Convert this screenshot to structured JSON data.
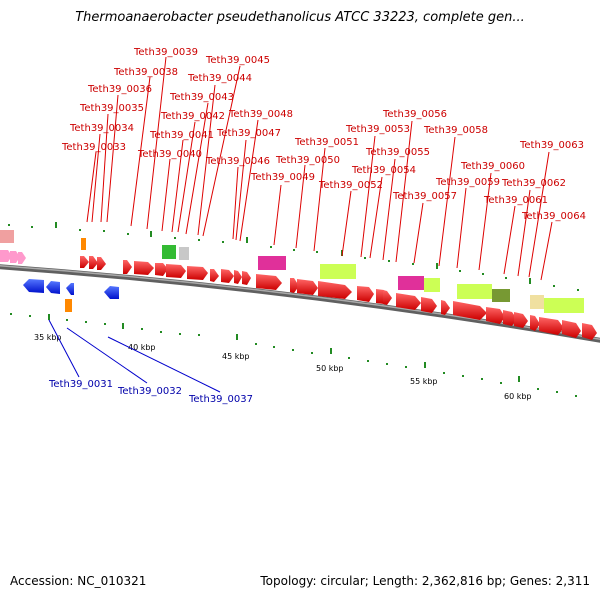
{
  "title": "Thermoanaerobacter pseudethanolicus ATCC 33223, complete gen...",
  "footer": {
    "accession": "Accession: NC_010321",
    "summary": "Topology: circular; Length: 2,362,816 bp; Genes: 2,311"
  },
  "colors": {
    "forward_cds": "#e00000",
    "reverse_cds": "#0022dd",
    "forward_label": "#cc0000",
    "reverse_label": "#0000aa",
    "backbone": "#808080",
    "tick": "#228b22"
  },
  "scale_labels": [
    "35 kbp",
    "40 kbp",
    "45 kbp",
    "50 kbp",
    "55 kbp",
    "60 kbp"
  ],
  "forward_genes": [
    "Teth39_0033",
    "Teth39_0034",
    "Teth39_0035",
    "Teth39_0036",
    "Teth39_0038",
    "Teth39_0039",
    "Teth39_0040",
    "Teth39_0041",
    "Teth39_0042",
    "Teth39_0043",
    "Teth39_0044",
    "Teth39_0045",
    "Teth39_0046",
    "Teth39_0047",
    "Teth39_0048",
    "Teth39_0049",
    "Teth39_0050",
    "Teth39_0051",
    "Teth39_0052",
    "Teth39_0053",
    "Teth39_0054",
    "Teth39_0055",
    "Teth39_0056",
    "Teth39_0057",
    "Teth39_0058",
    "Teth39_0059",
    "Teth39_0060",
    "Teth39_0061",
    "Teth39_0062",
    "Teth39_0063",
    "Teth39_0064"
  ],
  "reverse_genes": [
    "Teth39_0031",
    "Teth39_0032",
    "Teth39_0037"
  ]
}
